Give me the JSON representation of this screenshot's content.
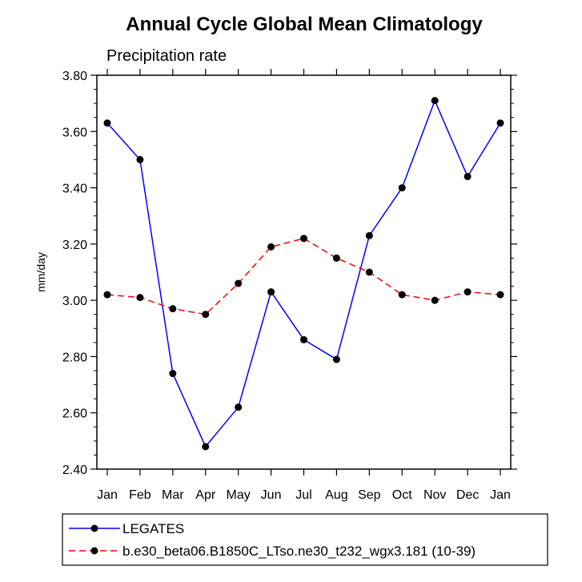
{
  "chart_data": {
    "type": "line",
    "title": "Annual Cycle Global Mean Climatology",
    "subtitle": "Precipitation rate",
    "xlabel": "",
    "ylabel": "mm/day",
    "ylim": [
      2.4,
      3.8
    ],
    "yticks": [
      "2.40",
      "2.60",
      "2.80",
      "3.00",
      "3.20",
      "3.40",
      "3.60",
      "3.80"
    ],
    "categories": [
      "Jan",
      "Feb",
      "Mar",
      "Apr",
      "May",
      "Jun",
      "Jul",
      "Aug",
      "Sep",
      "Oct",
      "Nov",
      "Dec",
      "Jan"
    ],
    "series": [
      {
        "name": "LEGATES",
        "color": "#0000ff",
        "dashed": false,
        "values": [
          3.63,
          3.5,
          2.74,
          2.48,
          2.62,
          3.03,
          2.86,
          2.79,
          3.23,
          3.4,
          3.71,
          3.44,
          3.63
        ]
      },
      {
        "name": "b.e30_beta06.B1850C_LTso.ne30_t232_wgx3.181 (10-39)",
        "color": "#ff0000",
        "dashed": true,
        "values": [
          3.02,
          3.01,
          2.97,
          2.95,
          3.06,
          3.19,
          3.22,
          3.15,
          3.1,
          3.02,
          3.0,
          3.03,
          3.02
        ]
      }
    ],
    "grid": false,
    "legend": "bottom"
  }
}
